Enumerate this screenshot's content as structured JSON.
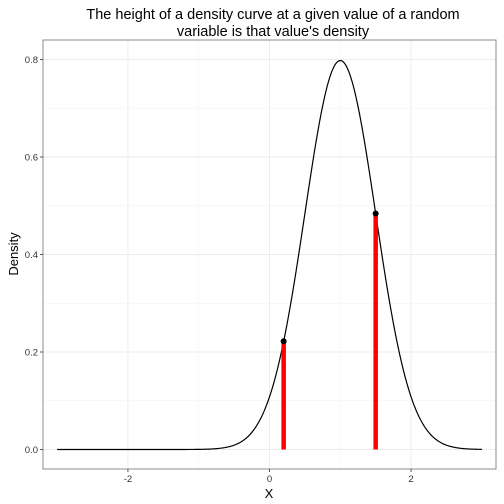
{
  "chart_data": {
    "type": "line",
    "title_lines": [
      "The height of a density curve at a given value of a random",
      "variable is that value's density"
    ],
    "xlabel": "X",
    "ylabel": "Density",
    "xlim": [
      -3.2,
      3.2
    ],
    "ylim": [
      -0.04,
      0.84
    ],
    "x_ticks": [
      -2,
      0,
      2
    ],
    "x_tick_labels": [
      "-2",
      "0",
      "2"
    ],
    "y_ticks": [
      0.0,
      0.2,
      0.4,
      0.6,
      0.8
    ],
    "y_tick_labels": [
      "0.0",
      "0.2",
      "0.4",
      "0.6",
      "0.8"
    ],
    "grid": true,
    "curve": {
      "distribution": "normal",
      "mean": 1,
      "sd": 0.5,
      "x_range": [
        -3,
        3
      ],
      "color": "#000000"
    },
    "highlight_points": [
      {
        "x": 0.2,
        "y": 0.222
      },
      {
        "x": 1.5,
        "y": 0.484
      }
    ],
    "segment_color": "#ff0000",
    "point_color": "#000000"
  }
}
